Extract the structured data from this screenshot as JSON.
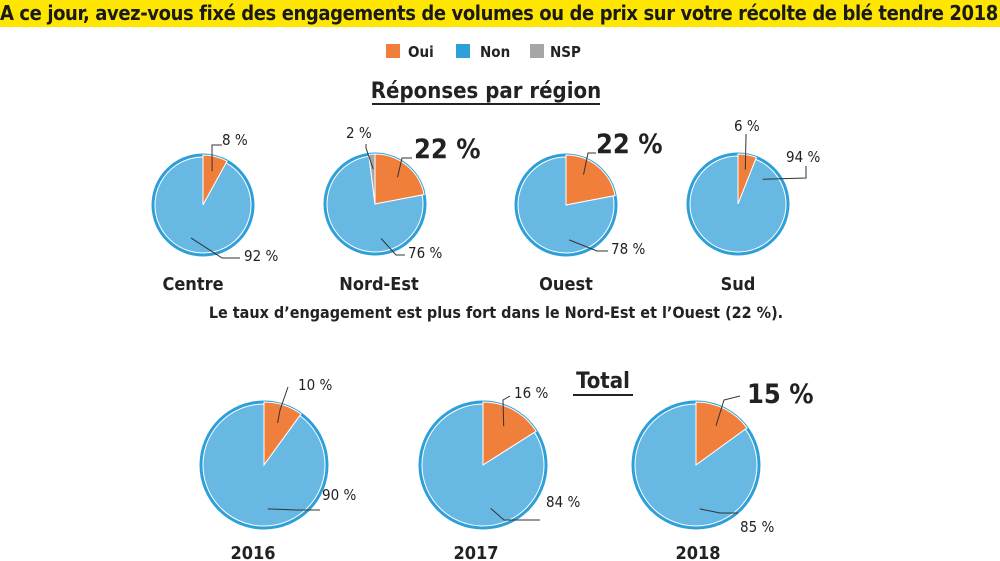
{
  "title": "A ce jour, avez-vous fixé des engagements de volumes ou de prix sur votre récolte de blé tendre 2018 ?",
  "legend": [
    {
      "label": "Oui",
      "color": "#f07f3c"
    },
    {
      "label": "Non",
      "color": "#2e9fd8"
    },
    {
      "label": "NSP",
      "color": "#a6a6a6"
    }
  ],
  "colors": {
    "oui": "#f07f3c",
    "non": "#2e9fd8",
    "non_fill": "#67b8e3",
    "nsp": "#a6a6a6"
  },
  "regions_heading": "Réponses par région",
  "regions_note": "Le taux d’engagement est plus fort dans le Nord-Est et l’Ouest (22 %).",
  "total_heading": "Total",
  "chart_data": [
    {
      "type": "pie",
      "title": "Réponses par région",
      "pies": [
        {
          "name": "Centre",
          "slices": [
            {
              "key": "oui",
              "value": 8,
              "label": "8 %"
            },
            {
              "key": "non",
              "value": 92,
              "label": "92 %"
            }
          ]
        },
        {
          "name": "Nord-Est",
          "slices": [
            {
              "key": "oui",
              "value": 22,
              "label": "22 %"
            },
            {
              "key": "non",
              "value": 76,
              "label": "76 %"
            },
            {
              "key": "nsp",
              "value": 2,
              "label": "2 %"
            }
          ]
        },
        {
          "name": "Ouest",
          "slices": [
            {
              "key": "oui",
              "value": 22,
              "label": "22 %"
            },
            {
              "key": "non",
              "value": 78,
              "label": "78 %"
            }
          ]
        },
        {
          "name": "Sud",
          "slices": [
            {
              "key": "oui",
              "value": 6,
              "label": "6 %"
            },
            {
              "key": "non",
              "value": 94,
              "label": "94 %"
            }
          ]
        }
      ]
    },
    {
      "type": "pie",
      "title": "Total",
      "pies": [
        {
          "name": "2016",
          "slices": [
            {
              "key": "oui",
              "value": 10,
              "label": "10 %"
            },
            {
              "key": "non",
              "value": 90,
              "label": "90 %"
            }
          ]
        },
        {
          "name": "2017",
          "slices": [
            {
              "key": "oui",
              "value": 16,
              "label": "16 %"
            },
            {
              "key": "non",
              "value": 84,
              "label": "84 %"
            }
          ]
        },
        {
          "name": "2018",
          "slices": [
            {
              "key": "oui",
              "value": 15,
              "label": "15 %"
            },
            {
              "key": "non",
              "value": 85,
              "label": "85 %"
            }
          ]
        }
      ]
    }
  ]
}
